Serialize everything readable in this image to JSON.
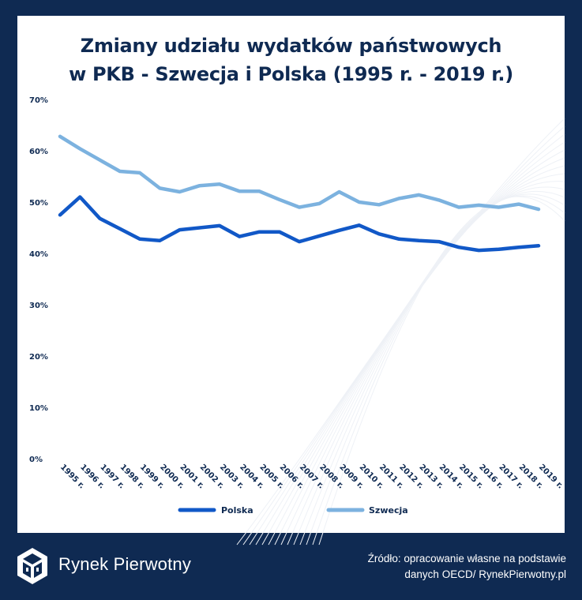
{
  "title_line1": "Zmiany udziału wydatków państwowych",
  "title_line2": "w PKB - Szwecja i Polska (1995 r. - 2019 r.)",
  "brand": "Rynek Pierwotny",
  "source_line1": "Źródło: opracowanie własne na podstawie",
  "source_line2": "danych OECD/ RynekPierwotny.pl",
  "colors": {
    "background": "#0f2a52",
    "polska": "#1158c7",
    "szwecja": "#7cb2df"
  },
  "chart_data": {
    "type": "line",
    "title": "Zmiany udziału wydatków państwowych w PKB - Szwecja i Polska (1995 r. - 2019 r.)",
    "categories": [
      "1995 r.",
      "1996 r.",
      "1997 r.",
      "1998 r.",
      "1999 r.",
      "2000 r.",
      "2001 r.",
      "2002 r.",
      "2003 r.",
      "2004 r.",
      "2005 r.",
      "2006 r.",
      "2007 r.",
      "2008 r.",
      "2009 r.",
      "2010 r.",
      "2011 r.",
      "2012 r.",
      "2013 r.",
      "2014 r.",
      "2015 r.",
      "2016 r.",
      "2017 r.",
      "2018 r.",
      "2019 r."
    ],
    "y_ticks": [
      "0%",
      "10%",
      "20%",
      "30%",
      "40%",
      "50%",
      "60%",
      "70%"
    ],
    "ylim": [
      0,
      70
    ],
    "grid": false,
    "legend_position": "bottom",
    "series": [
      {
        "name": "Polska",
        "color": "#1158c7",
        "values": [
          47.5,
          51.0,
          46.8,
          44.8,
          42.8,
          42.5,
          44.6,
          45.0,
          45.4,
          43.3,
          44.2,
          44.2,
          42.3,
          43.4,
          44.5,
          45.5,
          43.8,
          42.8,
          42.5,
          42.3,
          41.2,
          40.6,
          40.8,
          41.2,
          41.5
        ]
      },
      {
        "name": "Szwecja",
        "color": "#7cb2df",
        "values": [
          62.8,
          60.4,
          58.2,
          56.0,
          55.7,
          52.7,
          52.0,
          53.2,
          53.5,
          52.1,
          52.1,
          50.5,
          49.0,
          49.7,
          52.0,
          50.0,
          49.5,
          50.7,
          51.4,
          50.4,
          49.0,
          49.4,
          49.0,
          49.6,
          48.6
        ]
      }
    ]
  }
}
